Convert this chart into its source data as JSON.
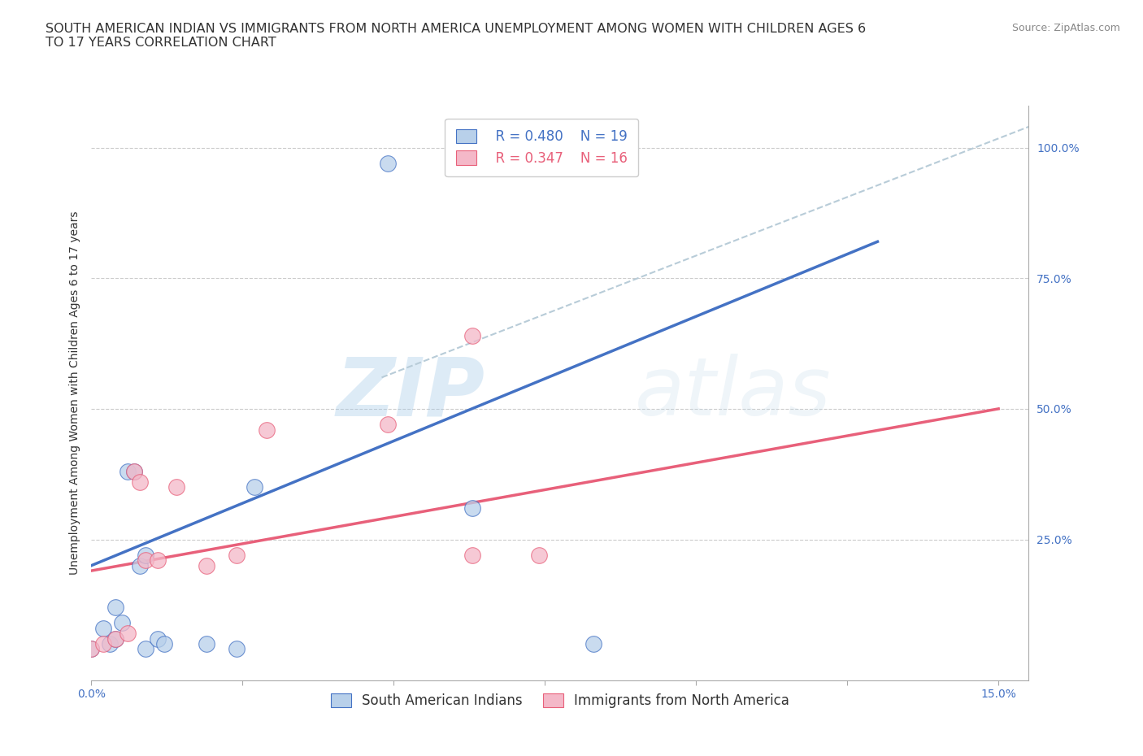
{
  "title": "SOUTH AMERICAN INDIAN VS IMMIGRANTS FROM NORTH AMERICA UNEMPLOYMENT AMONG WOMEN WITH CHILDREN AGES 6\nTO 17 YEARS CORRELATION CHART",
  "source": "Source: ZipAtlas.com",
  "ylabel": "Unemployment Among Women with Children Ages 6 to 17 years",
  "x_ticks": [
    0.0,
    0.025,
    0.05,
    0.075,
    0.1,
    0.125,
    0.15
  ],
  "y_ticks": [
    0.0,
    0.25,
    0.5,
    0.75,
    1.0
  ],
  "y_tick_labels": [
    "",
    "25.0%",
    "50.0%",
    "75.0%",
    "100.0%"
  ],
  "xlim": [
    0.0,
    0.155
  ],
  "ylim": [
    -0.02,
    1.08
  ],
  "blue_scatter": [
    [
      0.0,
      0.04
    ],
    [
      0.002,
      0.08
    ],
    [
      0.003,
      0.05
    ],
    [
      0.004,
      0.12
    ],
    [
      0.004,
      0.06
    ],
    [
      0.005,
      0.09
    ],
    [
      0.006,
      0.38
    ],
    [
      0.007,
      0.38
    ],
    [
      0.008,
      0.2
    ],
    [
      0.009,
      0.22
    ],
    [
      0.009,
      0.04
    ],
    [
      0.011,
      0.06
    ],
    [
      0.012,
      0.05
    ],
    [
      0.019,
      0.05
    ],
    [
      0.024,
      0.04
    ],
    [
      0.027,
      0.35
    ],
    [
      0.049,
      0.97
    ],
    [
      0.063,
      0.31
    ],
    [
      0.083,
      0.05
    ]
  ],
  "pink_scatter": [
    [
      0.0,
      0.04
    ],
    [
      0.002,
      0.05
    ],
    [
      0.004,
      0.06
    ],
    [
      0.006,
      0.07
    ],
    [
      0.007,
      0.38
    ],
    [
      0.008,
      0.36
    ],
    [
      0.009,
      0.21
    ],
    [
      0.011,
      0.21
    ],
    [
      0.014,
      0.35
    ],
    [
      0.019,
      0.2
    ],
    [
      0.024,
      0.22
    ],
    [
      0.029,
      0.46
    ],
    [
      0.049,
      0.47
    ],
    [
      0.063,
      0.22
    ],
    [
      0.074,
      0.22
    ],
    [
      0.063,
      0.64
    ]
  ],
  "blue_line": [
    [
      0.0,
      0.2
    ],
    [
      0.13,
      0.82
    ]
  ],
  "pink_line": [
    [
      0.0,
      0.19
    ],
    [
      0.15,
      0.5
    ]
  ],
  "gray_dashed_line": [
    [
      0.048,
      0.56
    ],
    [
      0.155,
      1.04
    ]
  ],
  "blue_R": "R = 0.480",
  "blue_N": "N = 19",
  "pink_R": "R = 0.347",
  "pink_N": "N = 16",
  "legend_blue_label": "South American Indians",
  "legend_pink_label": "Immigrants from North America",
  "blue_fill_color": "#b8d0ea",
  "pink_fill_color": "#f4b8c8",
  "blue_line_color": "#4472c4",
  "pink_line_color": "#e8607a",
  "gray_line_color": "#b8ccd8",
  "background_color": "#ffffff",
  "watermark_zip": "ZIP",
  "watermark_atlas": "atlas",
  "title_fontsize": 11.5,
  "axis_label_fontsize": 10,
  "tick_fontsize": 10,
  "legend_fontsize": 12
}
